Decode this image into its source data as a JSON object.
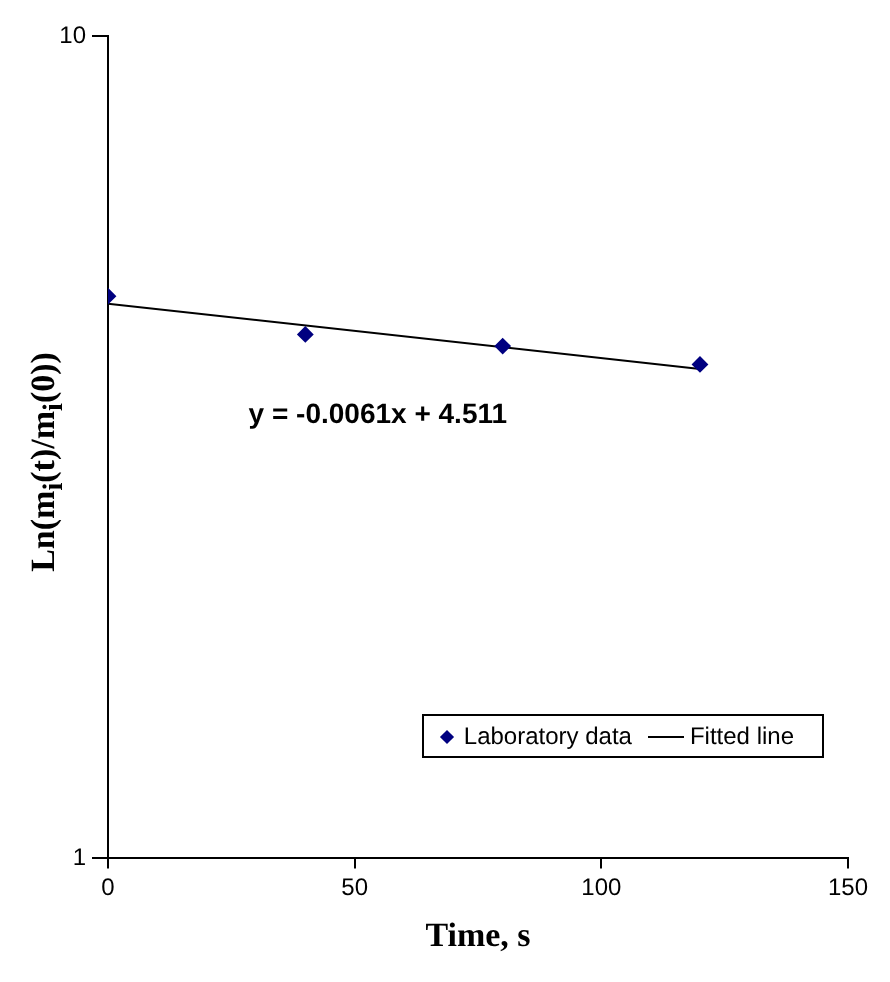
{
  "chart_data": {
    "type": "scatter",
    "xlabel": "Time, s",
    "ylabel": "Ln(m$_{i}$(t)/m$_{i}$(0))",
    "series": [
      {
        "name": "Laboratory data",
        "marker": "diamond",
        "color": "#000080",
        "x": [
          0,
          40,
          80,
          120
        ],
        "values": [
          4.83,
          4.34,
          4.2,
          3.99
        ]
      },
      {
        "name": "Fitted line",
        "type": "line",
        "marker": "none",
        "color": "#000000",
        "x": [
          0,
          120
        ],
        "values": [
          4.73,
          3.94
        ]
      }
    ],
    "xlim": [
      0,
      150
    ],
    "xticks": [
      0,
      50,
      100,
      150
    ],
    "ylim": [
      1,
      10
    ],
    "yticks": [
      1,
      10
    ],
    "log": "y",
    "grid": false,
    "legend": "bottom right",
    "annotations": [
      "y = -0.0061x + 4.511"
    ]
  }
}
